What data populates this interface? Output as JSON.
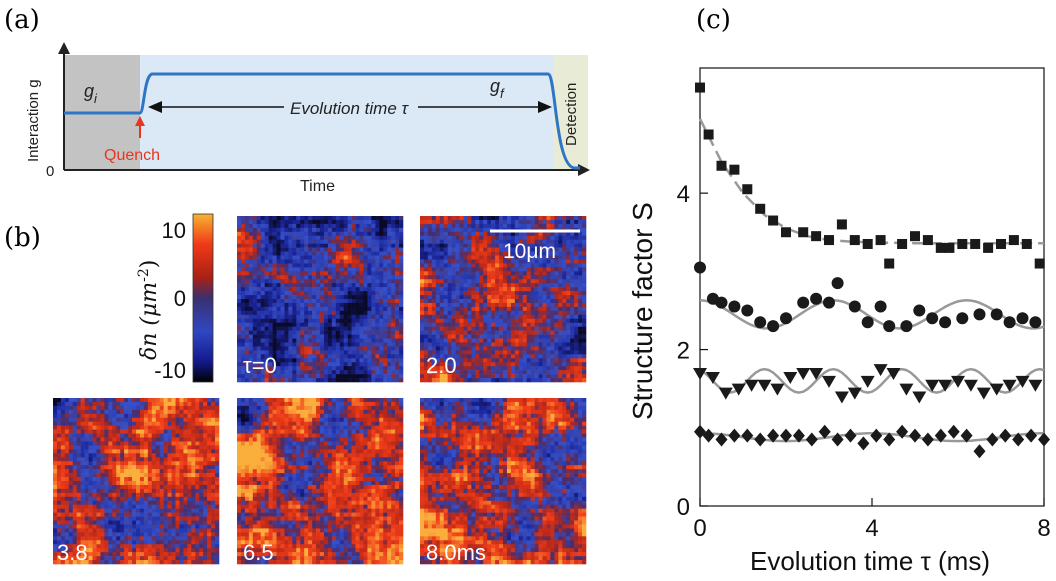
{
  "panel_labels": {
    "a": "(a)",
    "b": "(b)",
    "c": "(c)"
  },
  "panel_a": {
    "ylabel": "Interaction g",
    "xlabel": "Time",
    "y_zero": "0",
    "g_initial": "g",
    "g_initial_sub": "i",
    "g_final": "g",
    "g_final_sub": "f",
    "evolution_label": "Evolution time τ",
    "quench_label": "Quench",
    "detection_label": "Detection",
    "colors": {
      "curve": "#2f75c6",
      "quench": "#e8351f",
      "initial_bg": "#c3c3c3",
      "evolution_bg": "#dbe8f6",
      "detection_bg": "#e8ecd7"
    }
  },
  "panel_b": {
    "colorbar_label": "δn (μm",
    "colorbar_label_sup": "-2",
    "colorbar_label_end": ")",
    "colorbar_ticks": [
      "10",
      "0",
      "-10"
    ],
    "colorbar_range": [
      -10,
      10
    ],
    "scalebar_label": "10μm",
    "images": [
      {
        "label": "τ=0",
        "seed": 11,
        "bias": -0.35
      },
      {
        "label": "2.0",
        "seed": 23,
        "bias": 0.0
      },
      {
        "label": "3.8",
        "seed": 37,
        "bias": 0.25
      },
      {
        "label": "6.5",
        "seed": 41,
        "bias": 0.3
      },
      {
        "label": "8.0ms",
        "seed": 53,
        "bias": 0.25
      }
    ]
  },
  "chart_data": {
    "type": "scatter",
    "xlabel": "Evolution time τ (ms)",
    "ylabel": "Structure factor S",
    "xlim": [
      0,
      8
    ],
    "ylim": [
      0,
      5.6
    ],
    "xticks": [
      "0",
      "4",
      "8"
    ],
    "yticks": [
      "0",
      "2",
      "4"
    ],
    "grid": false,
    "series": [
      {
        "marker": "square",
        "fit": "dashed",
        "x": [
          0.0,
          0.2,
          0.5,
          0.8,
          1.1,
          1.4,
          1.7,
          2.0,
          2.4,
          2.7,
          3.0,
          3.3,
          3.6,
          3.9,
          4.2,
          4.4,
          4.7,
          5.0,
          5.3,
          5.6,
          5.8,
          6.1,
          6.4,
          6.7,
          7.0,
          7.3,
          7.6,
          7.9
        ],
        "y": [
          5.35,
          4.75,
          4.35,
          4.3,
          4.05,
          3.8,
          3.65,
          3.5,
          3.5,
          3.45,
          3.4,
          3.6,
          3.4,
          3.35,
          3.4,
          3.1,
          3.35,
          3.45,
          3.4,
          3.3,
          3.3,
          3.35,
          3.35,
          3.3,
          3.35,
          3.4,
          3.35,
          3.1
        ],
        "fit_x": [
          0.0,
          0.5,
          1.0,
          1.5,
          2.0,
          2.5,
          3.0,
          3.5,
          4.0,
          5.0,
          6.0,
          7.0,
          8.0
        ],
        "fit_y": [
          4.95,
          4.4,
          4.0,
          3.72,
          3.55,
          3.45,
          3.4,
          3.38,
          3.37,
          3.36,
          3.36,
          3.36,
          3.36
        ]
      },
      {
        "marker": "circle",
        "fit": "solid",
        "x": [
          0.0,
          0.3,
          0.5,
          0.8,
          1.1,
          1.4,
          1.7,
          2.0,
          2.4,
          2.7,
          3.0,
          3.2,
          3.6,
          3.9,
          4.2,
          4.4,
          4.8,
          5.1,
          5.4,
          5.7,
          6.1,
          6.5,
          6.9,
          7.2,
          7.5,
          7.8
        ],
        "y": [
          3.05,
          2.65,
          2.6,
          2.55,
          2.5,
          2.35,
          2.3,
          2.4,
          2.6,
          2.65,
          2.6,
          2.85,
          2.55,
          2.35,
          2.55,
          2.3,
          2.3,
          2.5,
          2.4,
          2.35,
          2.4,
          2.45,
          2.45,
          2.35,
          2.4,
          2.35
        ]
      },
      {
        "marker": "triangle-down",
        "fit": "solid",
        "x": [
          0.0,
          0.3,
          0.6,
          0.9,
          1.2,
          1.5,
          1.8,
          2.1,
          2.4,
          2.7,
          3.0,
          3.3,
          3.6,
          3.9,
          4.2,
          4.5,
          4.8,
          5.1,
          5.4,
          5.7,
          6.0,
          6.3,
          6.6,
          6.9,
          7.2,
          7.5,
          7.8
        ],
        "y": [
          1.7,
          1.65,
          1.45,
          1.5,
          1.55,
          1.55,
          1.5,
          1.65,
          1.7,
          1.7,
          1.6,
          1.4,
          1.45,
          1.6,
          1.75,
          1.7,
          1.5,
          1.4,
          1.55,
          1.55,
          1.6,
          1.55,
          1.45,
          1.5,
          1.55,
          1.6,
          1.55
        ]
      },
      {
        "marker": "diamond",
        "fit": "solid",
        "x": [
          0.0,
          0.2,
          0.5,
          0.8,
          1.1,
          1.4,
          1.7,
          2.0,
          2.3,
          2.6,
          2.9,
          3.2,
          3.5,
          3.8,
          4.1,
          4.4,
          4.7,
          5.0,
          5.3,
          5.6,
          5.9,
          6.2,
          6.5,
          6.8,
          7.1,
          7.4,
          7.7,
          8.0
        ],
        "y": [
          0.95,
          0.9,
          0.85,
          0.9,
          0.9,
          0.85,
          0.9,
          0.9,
          0.9,
          0.85,
          0.95,
          0.85,
          0.9,
          0.8,
          0.9,
          0.85,
          0.95,
          0.9,
          0.85,
          0.9,
          0.95,
          0.9,
          0.7,
          0.85,
          0.9,
          0.85,
          0.9,
          0.85
        ]
      }
    ]
  }
}
